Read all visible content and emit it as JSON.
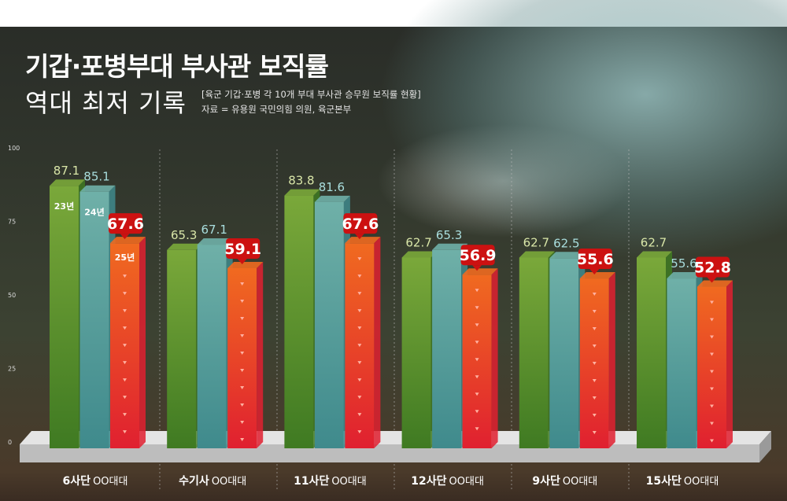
{
  "header": {
    "title": "기갑·포병부대 부사관 보직률",
    "subtitle": "역대 최저 기록",
    "note": "[육군 기갑·포병 각 10개 부대 부사관 승무원 보직률 현황]",
    "source": "자료 = 유용원 국민의힘 의원, 육군본부"
  },
  "chart_data": {
    "type": "bar",
    "title": "기갑·포병부대 부사관 보직률 역대 최저 기록",
    "categories": [
      {
        "bold": "6사단",
        "unit": "OO대대"
      },
      {
        "bold": "수기사",
        "unit": "OO대대"
      },
      {
        "bold": "11사단",
        "unit": "OO대대"
      },
      {
        "bold": "12사단",
        "unit": "OO대대"
      },
      {
        "bold": "9사단",
        "unit": "OO대대"
      },
      {
        "bold": "15사단",
        "unit": "OO대대"
      }
    ],
    "series": [
      {
        "name": "23년",
        "color": "#5a9a34",
        "values": [
          87.1,
          65.3,
          83.8,
          62.7,
          62.7,
          62.7
        ]
      },
      {
        "name": "24년",
        "color": "#4f9c9c",
        "values": [
          85.1,
          67.1,
          81.6,
          65.3,
          62.5,
          55.6
        ]
      },
      {
        "name": "25년",
        "color": "#e8432a",
        "values": [
          67.6,
          59.1,
          67.6,
          56.9,
          55.6,
          52.8
        ]
      }
    ],
    "yticks": [
      0,
      25,
      50,
      75,
      100
    ],
    "ylim": [
      0,
      100
    ],
    "grid": "vertical dashed separators",
    "legend": "inline labels on first group",
    "highlight_color": "#cc1111"
  }
}
